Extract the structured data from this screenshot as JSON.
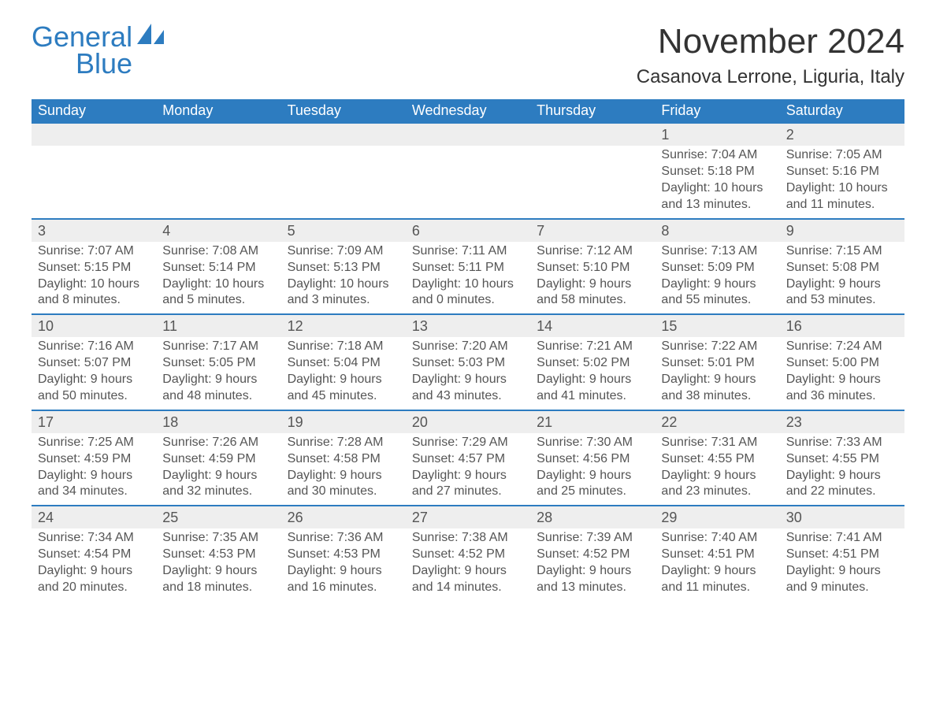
{
  "logo": {
    "line1": "General",
    "line2": "Blue",
    "color": "#2d7cc0"
  },
  "title": {
    "month": "November 2024",
    "location": "Casanova Lerrone, Liguria, Italy"
  },
  "colors": {
    "header_bg": "#2d7cc0",
    "header_text": "#ffffff",
    "daynum_bg": "#eeeeee",
    "row_border": "#2d7cc0",
    "body_text": "#555555",
    "page_bg": "#ffffff"
  },
  "calendar": {
    "weekdays": [
      "Sunday",
      "Monday",
      "Tuesday",
      "Wednesday",
      "Thursday",
      "Friday",
      "Saturday"
    ],
    "label_sunrise": "Sunrise: ",
    "label_sunset": "Sunset: ",
    "label_daylight": "Daylight: ",
    "weeks": [
      [
        {
          "empty": true
        },
        {
          "empty": true
        },
        {
          "empty": true
        },
        {
          "empty": true
        },
        {
          "empty": true
        },
        {
          "day": 1,
          "sunrise": "7:04 AM",
          "sunset": "5:18 PM",
          "daylight": "10 hours and 13 minutes."
        },
        {
          "day": 2,
          "sunrise": "7:05 AM",
          "sunset": "5:16 PM",
          "daylight": "10 hours and 11 minutes."
        }
      ],
      [
        {
          "day": 3,
          "sunrise": "7:07 AM",
          "sunset": "5:15 PM",
          "daylight": "10 hours and 8 minutes."
        },
        {
          "day": 4,
          "sunrise": "7:08 AM",
          "sunset": "5:14 PM",
          "daylight": "10 hours and 5 minutes."
        },
        {
          "day": 5,
          "sunrise": "7:09 AM",
          "sunset": "5:13 PM",
          "daylight": "10 hours and 3 minutes."
        },
        {
          "day": 6,
          "sunrise": "7:11 AM",
          "sunset": "5:11 PM",
          "daylight": "10 hours and 0 minutes."
        },
        {
          "day": 7,
          "sunrise": "7:12 AM",
          "sunset": "5:10 PM",
          "daylight": "9 hours and 58 minutes."
        },
        {
          "day": 8,
          "sunrise": "7:13 AM",
          "sunset": "5:09 PM",
          "daylight": "9 hours and 55 minutes."
        },
        {
          "day": 9,
          "sunrise": "7:15 AM",
          "sunset": "5:08 PM",
          "daylight": "9 hours and 53 minutes."
        }
      ],
      [
        {
          "day": 10,
          "sunrise": "7:16 AM",
          "sunset": "5:07 PM",
          "daylight": "9 hours and 50 minutes."
        },
        {
          "day": 11,
          "sunrise": "7:17 AM",
          "sunset": "5:05 PM",
          "daylight": "9 hours and 48 minutes."
        },
        {
          "day": 12,
          "sunrise": "7:18 AM",
          "sunset": "5:04 PM",
          "daylight": "9 hours and 45 minutes."
        },
        {
          "day": 13,
          "sunrise": "7:20 AM",
          "sunset": "5:03 PM",
          "daylight": "9 hours and 43 minutes."
        },
        {
          "day": 14,
          "sunrise": "7:21 AM",
          "sunset": "5:02 PM",
          "daylight": "9 hours and 41 minutes."
        },
        {
          "day": 15,
          "sunrise": "7:22 AM",
          "sunset": "5:01 PM",
          "daylight": "9 hours and 38 minutes."
        },
        {
          "day": 16,
          "sunrise": "7:24 AM",
          "sunset": "5:00 PM",
          "daylight": "9 hours and 36 minutes."
        }
      ],
      [
        {
          "day": 17,
          "sunrise": "7:25 AM",
          "sunset": "4:59 PM",
          "daylight": "9 hours and 34 minutes."
        },
        {
          "day": 18,
          "sunrise": "7:26 AM",
          "sunset": "4:59 PM",
          "daylight": "9 hours and 32 minutes."
        },
        {
          "day": 19,
          "sunrise": "7:28 AM",
          "sunset": "4:58 PM",
          "daylight": "9 hours and 30 minutes."
        },
        {
          "day": 20,
          "sunrise": "7:29 AM",
          "sunset": "4:57 PM",
          "daylight": "9 hours and 27 minutes."
        },
        {
          "day": 21,
          "sunrise": "7:30 AM",
          "sunset": "4:56 PM",
          "daylight": "9 hours and 25 minutes."
        },
        {
          "day": 22,
          "sunrise": "7:31 AM",
          "sunset": "4:55 PM",
          "daylight": "9 hours and 23 minutes."
        },
        {
          "day": 23,
          "sunrise": "7:33 AM",
          "sunset": "4:55 PM",
          "daylight": "9 hours and 22 minutes."
        }
      ],
      [
        {
          "day": 24,
          "sunrise": "7:34 AM",
          "sunset": "4:54 PM",
          "daylight": "9 hours and 20 minutes."
        },
        {
          "day": 25,
          "sunrise": "7:35 AM",
          "sunset": "4:53 PM",
          "daylight": "9 hours and 18 minutes."
        },
        {
          "day": 26,
          "sunrise": "7:36 AM",
          "sunset": "4:53 PM",
          "daylight": "9 hours and 16 minutes."
        },
        {
          "day": 27,
          "sunrise": "7:38 AM",
          "sunset": "4:52 PM",
          "daylight": "9 hours and 14 minutes."
        },
        {
          "day": 28,
          "sunrise": "7:39 AM",
          "sunset": "4:52 PM",
          "daylight": "9 hours and 13 minutes."
        },
        {
          "day": 29,
          "sunrise": "7:40 AM",
          "sunset": "4:51 PM",
          "daylight": "9 hours and 11 minutes."
        },
        {
          "day": 30,
          "sunrise": "7:41 AM",
          "sunset": "4:51 PM",
          "daylight": "9 hours and 9 minutes."
        }
      ]
    ]
  }
}
